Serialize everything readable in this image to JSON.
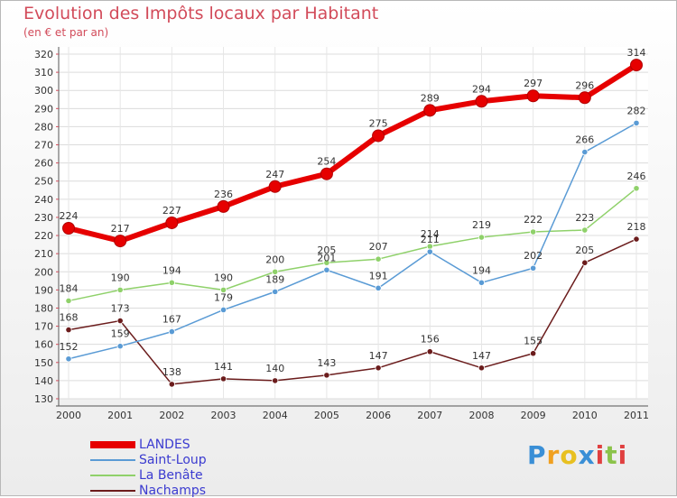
{
  "chart_data": {
    "type": "line",
    "title": "Evolution des Impôts locaux par Habitant",
    "subtitle": "(en € et par an)",
    "xlabel": "",
    "ylabel": "",
    "x": [
      "2000",
      "2001",
      "2002",
      "2003",
      "2004",
      "2005",
      "2006",
      "2007",
      "2008",
      "2009",
      "2010",
      "2011"
    ],
    "ylim": [
      130,
      320
    ],
    "yticks": [
      "130",
      "140",
      "150",
      "160",
      "170",
      "180",
      "190",
      "200",
      "210",
      "220",
      "230",
      "240",
      "250",
      "260",
      "270",
      "280",
      "290",
      "300",
      "310",
      "320"
    ],
    "grid": "horizontal",
    "legend_position": "bottom-left",
    "series": [
      {
        "name": "LANDES",
        "color": "#e60000",
        "values": [
          224,
          217,
          227,
          236,
          247,
          254,
          275,
          289,
          294,
          297,
          296,
          314
        ]
      },
      {
        "name": "Saint-Loup",
        "color": "#5a9bd5",
        "values": [
          152,
          159,
          167,
          179,
          189,
          201,
          191,
          211,
          194,
          202,
          266,
          282
        ]
      },
      {
        "name": "La Benâte",
        "color": "#8fd16a",
        "values": [
          184,
          190,
          194,
          190,
          200,
          205,
          207,
          214,
          219,
          222,
          223,
          246
        ]
      },
      {
        "name": "Nachamps",
        "color": "#6b1c1c",
        "values": [
          168,
          173,
          138,
          141,
          140,
          143,
          147,
          156,
          147,
          155,
          205,
          218
        ]
      }
    ]
  },
  "brand": {
    "letters": [
      "P",
      "r",
      "o",
      "x",
      "i",
      "t",
      "i"
    ],
    "colors": [
      "#3a8fd6",
      "#f0a020",
      "#e8c020",
      "#3a8fd6",
      "#e04040",
      "#8bc34a",
      "#e04040"
    ]
  }
}
